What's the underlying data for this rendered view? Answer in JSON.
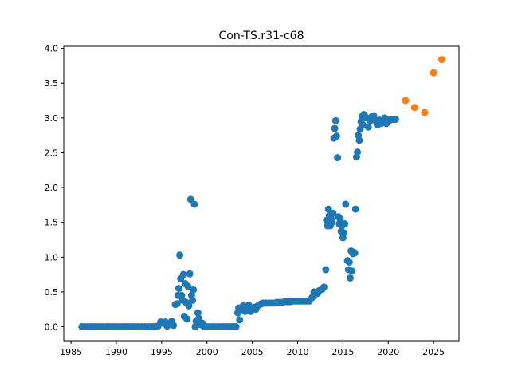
{
  "chart_data": {
    "type": "scatter",
    "title": "Con-TS.r31-c68",
    "xlabel": "",
    "ylabel": "",
    "xlim": [
      1984.2,
      2027.8
    ],
    "ylim": [
      -0.2,
      4.03
    ],
    "grid": false,
    "x_ticks": [
      1985,
      1990,
      1995,
      2000,
      2005,
      2010,
      2015,
      2020,
      2025
    ],
    "x_tick_labels": [
      "1985",
      "1990",
      "1995",
      "2000",
      "2005",
      "2010",
      "2015",
      "2020",
      "2025"
    ],
    "y_ticks": [
      0.0,
      0.5,
      1.0,
      1.5,
      2.0,
      2.5,
      3.0,
      3.5,
      4.0
    ],
    "y_tick_labels": [
      "0.0",
      "0.5",
      "1.0",
      "1.5",
      "2.0",
      "2.5",
      "3.0",
      "3.5",
      "4.0"
    ],
    "series": [
      {
        "color": "#1f77b4",
        "points": [
          [
            1986.2,
            0.0
          ],
          [
            1986.5,
            0.0
          ],
          [
            1986.8,
            0.0
          ],
          [
            1987.1,
            0.0
          ],
          [
            1987.4,
            0.0
          ],
          [
            1987.7,
            0.0
          ],
          [
            1988.0,
            0.0
          ],
          [
            1988.3,
            0.0
          ],
          [
            1988.6,
            0.0
          ],
          [
            1988.9,
            0.0
          ],
          [
            1989.2,
            0.0
          ],
          [
            1989.5,
            0.0
          ],
          [
            1989.8,
            0.0
          ],
          [
            1990.1,
            0.0
          ],
          [
            1990.4,
            0.0
          ],
          [
            1990.7,
            0.0
          ],
          [
            1991.0,
            0.0
          ],
          [
            1991.3,
            0.0
          ],
          [
            1991.6,
            0.0
          ],
          [
            1991.9,
            0.0
          ],
          [
            1992.2,
            0.0
          ],
          [
            1992.5,
            0.0
          ],
          [
            1992.8,
            0.0
          ],
          [
            1993.1,
            0.0
          ],
          [
            1993.4,
            0.0
          ],
          [
            1993.7,
            0.0
          ],
          [
            1994.0,
            0.0
          ],
          [
            1994.3,
            0.0
          ],
          [
            1994.6,
            0.01
          ],
          [
            1994.9,
            0.07
          ],
          [
            1995.2,
            0.05
          ],
          [
            1995.4,
            0.07
          ],
          [
            1995.6,
            0.01
          ],
          [
            1995.9,
            0.05
          ],
          [
            1996.1,
            0.08
          ],
          [
            1996.3,
            0.02
          ],
          [
            1996.5,
            0.32
          ],
          [
            1996.7,
            0.33
          ],
          [
            1996.8,
            0.45
          ],
          [
            1996.9,
            0.55
          ],
          [
            1997.0,
            1.03
          ],
          [
            1997.1,
            0.69
          ],
          [
            1997.2,
            0.45
          ],
          [
            1997.3,
            0.38
          ],
          [
            1997.4,
            0.75
          ],
          [
            1997.5,
            0.15
          ],
          [
            1997.6,
            0.62
          ],
          [
            1997.7,
            0.35
          ],
          [
            1997.8,
            0.11
          ],
          [
            1997.9,
            0.58
          ],
          [
            1998.0,
            0.3
          ],
          [
            1998.1,
            0.76
          ],
          [
            1998.2,
            1.83
          ],
          [
            1998.3,
            0.45
          ],
          [
            1998.4,
            0.38
          ],
          [
            1998.5,
            0.53
          ],
          [
            1998.6,
            1.76
          ],
          [
            1998.7,
            0.0
          ],
          [
            1998.8,
            0.08
          ],
          [
            1998.9,
            0.05
          ],
          [
            1999.0,
            0.2
          ],
          [
            1999.1,
            0.12
          ],
          [
            1999.3,
            0.03
          ],
          [
            1999.5,
            0.05
          ],
          [
            1999.7,
            0.0
          ],
          [
            2000.0,
            0.0
          ],
          [
            2000.3,
            0.0
          ],
          [
            2000.6,
            0.0
          ],
          [
            2000.9,
            0.0
          ],
          [
            2001.2,
            0.0
          ],
          [
            2001.5,
            0.0
          ],
          [
            2001.8,
            0.0
          ],
          [
            2002.1,
            0.0
          ],
          [
            2002.4,
            0.0
          ],
          [
            2002.7,
            0.0
          ],
          [
            2003.0,
            0.0
          ],
          [
            2003.2,
            0.0
          ],
          [
            2003.4,
            0.2
          ],
          [
            2003.5,
            0.27
          ],
          [
            2003.6,
            0.1
          ],
          [
            2003.8,
            0.25
          ],
          [
            2004.0,
            0.3
          ],
          [
            2004.2,
            0.22
          ],
          [
            2004.4,
            0.27
          ],
          [
            2004.6,
            0.31
          ],
          [
            2004.8,
            0.22
          ],
          [
            2005.0,
            0.25
          ],
          [
            2005.2,
            0.28
          ],
          [
            2005.4,
            0.25
          ],
          [
            2005.6,
            0.3
          ],
          [
            2005.8,
            0.32
          ],
          [
            2006.0,
            0.33
          ],
          [
            2006.2,
            0.34
          ],
          [
            2006.5,
            0.34
          ],
          [
            2006.8,
            0.34
          ],
          [
            2007.1,
            0.34
          ],
          [
            2007.4,
            0.34
          ],
          [
            2007.7,
            0.35
          ],
          [
            2008.0,
            0.35
          ],
          [
            2008.3,
            0.35
          ],
          [
            2008.6,
            0.36
          ],
          [
            2008.9,
            0.36
          ],
          [
            2009.2,
            0.36
          ],
          [
            2009.5,
            0.37
          ],
          [
            2009.8,
            0.37
          ],
          [
            2010.1,
            0.37
          ],
          [
            2010.4,
            0.37
          ],
          [
            2010.7,
            0.37
          ],
          [
            2011.0,
            0.37
          ],
          [
            2011.3,
            0.37
          ],
          [
            2011.6,
            0.42
          ],
          [
            2011.8,
            0.5
          ],
          [
            2012.0,
            0.47
          ],
          [
            2012.2,
            0.48
          ],
          [
            2012.4,
            0.52
          ],
          [
            2012.7,
            0.54
          ],
          [
            2012.9,
            0.57
          ],
          [
            2013.1,
            0.82
          ],
          [
            2013.2,
            1.53
          ],
          [
            2013.3,
            1.45
          ],
          [
            2013.4,
            1.69
          ],
          [
            2013.5,
            1.6
          ],
          [
            2013.6,
            1.45
          ],
          [
            2013.7,
            1.55
          ],
          [
            2013.8,
            1.5
          ],
          [
            2013.9,
            1.63
          ],
          [
            2014.0,
            2.71
          ],
          [
            2014.1,
            2.85
          ],
          [
            2014.2,
            2.96
          ],
          [
            2014.3,
            2.74
          ],
          [
            2014.4,
            2.43
          ],
          [
            2014.5,
            1.58
          ],
          [
            2014.6,
            1.48
          ],
          [
            2014.7,
            1.55
          ],
          [
            2014.8,
            1.37
          ],
          [
            2014.9,
            1.45
          ],
          [
            2015.0,
            1.28
          ],
          [
            2015.1,
            1.35
          ],
          [
            2015.2,
            1.48
          ],
          [
            2015.3,
            1.76
          ],
          [
            2015.5,
            0.95
          ],
          [
            2015.6,
            0.82
          ],
          [
            2015.7,
            0.93
          ],
          [
            2015.8,
            0.7
          ],
          [
            2015.9,
            1.09
          ],
          [
            2016.0,
            0.8
          ],
          [
            2016.1,
            1.05
          ],
          [
            2016.2,
            1.07
          ],
          [
            2016.3,
            1.06
          ],
          [
            2016.4,
            1.69
          ],
          [
            2016.5,
            2.44
          ],
          [
            2016.6,
            2.51
          ],
          [
            2016.7,
            2.75
          ],
          [
            2016.8,
            2.68
          ],
          [
            2016.9,
            2.84
          ],
          [
            2017.0,
            2.95
          ],
          [
            2017.1,
            3.02
          ],
          [
            2017.2,
            2.9
          ],
          [
            2017.3,
            3.05
          ],
          [
            2017.4,
            3.03
          ],
          [
            2017.6,
            3.0
          ],
          [
            2017.8,
            2.87
          ],
          [
            2018.0,
            2.96
          ],
          [
            2018.2,
            3.02
          ],
          [
            2018.4,
            3.03
          ],
          [
            2018.6,
            2.96
          ],
          [
            2018.8,
            2.9
          ],
          [
            2019.0,
            2.97
          ],
          [
            2019.2,
            2.92
          ],
          [
            2019.4,
            2.96
          ],
          [
            2019.6,
            3.0
          ],
          [
            2019.8,
            2.92
          ],
          [
            2020.0,
            2.97
          ],
          [
            2020.2,
            2.97
          ],
          [
            2020.4,
            2.98
          ],
          [
            2020.6,
            2.98
          ],
          [
            2020.8,
            2.98
          ]
        ]
      },
      {
        "color": "#ff7f0e",
        "points": [
          [
            2021.9,
            3.25
          ],
          [
            2022.9,
            3.15
          ],
          [
            2024.0,
            3.08
          ],
          [
            2025.0,
            3.65
          ],
          [
            2025.9,
            3.84
          ]
        ]
      }
    ]
  }
}
